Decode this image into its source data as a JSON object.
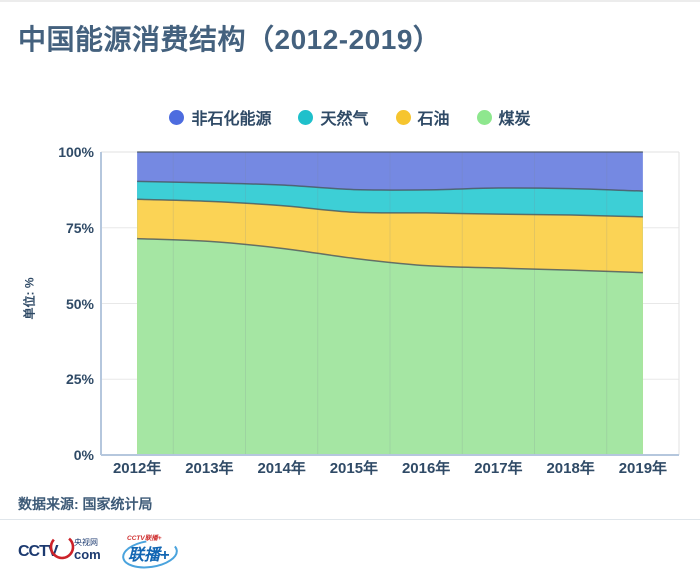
{
  "title": "中国能源消费结构（2012-2019）",
  "legend": {
    "items": [
      {
        "label": "非石化能源",
        "color": "#4d6cdf"
      },
      {
        "label": "天然气",
        "color": "#1fc0cb"
      },
      {
        "label": "石油",
        "color": "#f6c52f"
      },
      {
        "label": "煤炭",
        "color": "#8ee78e"
      }
    ]
  },
  "chart_data": {
    "type": "area",
    "stacked": true,
    "title": "中国能源消费结构（2012-2019）",
    "xlabel": "",
    "ylabel": "单位: %",
    "ylim": [
      0,
      100
    ],
    "grid": true,
    "legend_position": "top",
    "y_ticks": [
      "100%",
      "75%",
      "50%",
      "25%",
      "0%"
    ],
    "categories": [
      "2012年",
      "2013年",
      "2014年",
      "2015年",
      "2016年",
      "2017年",
      "2018年",
      "2019年"
    ],
    "series": [
      {
        "name": "煤炭",
        "fill": "#a5e6a3",
        "legend_color": "#8ee78e",
        "values": [
          71.4,
          70.5,
          68.2,
          64.9,
          62.5,
          61.7,
          61.0,
          60.2
        ]
      },
      {
        "name": "石油",
        "fill": "#fbd355",
        "legend_color": "#f6c52f",
        "values": [
          13.0,
          13.2,
          14.1,
          15.2,
          17.4,
          17.8,
          18.2,
          18.4
        ]
      },
      {
        "name": "天然气",
        "fill": "#3dcfd6",
        "legend_color": "#1fc0cb",
        "values": [
          5.9,
          6.1,
          6.8,
          7.5,
          7.6,
          8.6,
          8.7,
          8.5
        ]
      },
      {
        "name": "非石化能源",
        "fill": "#7589e2",
        "legend_color": "#4d6cdf",
        "values": [
          9.7,
          10.2,
          10.9,
          12.4,
          12.5,
          11.9,
          12.1,
          12.9
        ]
      }
    ],
    "edge_line_color": "#4a555e",
    "axis_line_color": "#b5c7dd",
    "gridline_color": "#e8e8e8"
  },
  "footer": {
    "source": "数据来源: 国家统计局"
  },
  "logos": {
    "cctv": {
      "wordmark": "CCTV",
      "sub": "com",
      "side": "央视网"
    },
    "lianbo": {
      "text": "联播+",
      "top": "CCTV联播+"
    }
  }
}
